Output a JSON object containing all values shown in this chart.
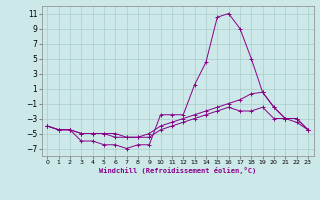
{
  "xlabel": "Windchill (Refroidissement éolien,°C)",
  "background_color": "#cce8e8",
  "grid_color": "#aacccc",
  "line_color": "#880088",
  "xlim": [
    -0.5,
    23.5
  ],
  "ylim": [
    -8,
    12
  ],
  "yticks": [
    -7,
    -5,
    -3,
    -1,
    1,
    3,
    5,
    7,
    9,
    11
  ],
  "xticks": [
    0,
    1,
    2,
    3,
    4,
    5,
    6,
    7,
    8,
    9,
    10,
    11,
    12,
    13,
    14,
    15,
    16,
    17,
    18,
    19,
    20,
    21,
    22,
    23
  ],
  "series": [
    {
      "x": [
        0,
        1,
        2,
        3,
        4,
        5,
        6,
        7,
        8,
        9,
        10,
        11,
        12,
        13,
        14,
        15,
        16,
        17,
        18,
        19,
        20,
        21,
        22,
        23
      ],
      "y": [
        -4,
        -4.5,
        -4.5,
        -6,
        -6,
        -6.5,
        -6.5,
        -7,
        -6.5,
        -6.5,
        -2.5,
        -2.5,
        -2.5,
        1.5,
        4.5,
        10.5,
        11,
        9,
        5,
        0.5,
        -1.5,
        -3,
        -3,
        -4.5
      ]
    },
    {
      "x": [
        0,
        1,
        2,
        3,
        4,
        5,
        6,
        7,
        8,
        9,
        10,
        11,
        12,
        13,
        14,
        15,
        16,
        17,
        18,
        19,
        20,
        21,
        22,
        23
      ],
      "y": [
        -4,
        -4.5,
        -4.5,
        -5,
        -5,
        -5,
        -5.5,
        -5.5,
        -5.5,
        -5,
        -4,
        -3.5,
        -3,
        -2.5,
        -2,
        -1.5,
        -1,
        -0.5,
        0.3,
        0.5,
        -1.5,
        -3,
        -3,
        -4.5
      ]
    },
    {
      "x": [
        0,
        1,
        2,
        3,
        4,
        5,
        6,
        7,
        8,
        9,
        10,
        11,
        12,
        13,
        14,
        15,
        16,
        17,
        18,
        19,
        20,
        21,
        22,
        23
      ],
      "y": [
        -4,
        -4.5,
        -4.5,
        -5,
        -5,
        -5,
        -5,
        -5.5,
        -5.5,
        -5.5,
        -4.5,
        -4,
        -3.5,
        -3,
        -2.5,
        -2,
        -1.5,
        -2,
        -2,
        -1.5,
        -3,
        -3,
        -3.5,
        -4.5
      ]
    }
  ]
}
